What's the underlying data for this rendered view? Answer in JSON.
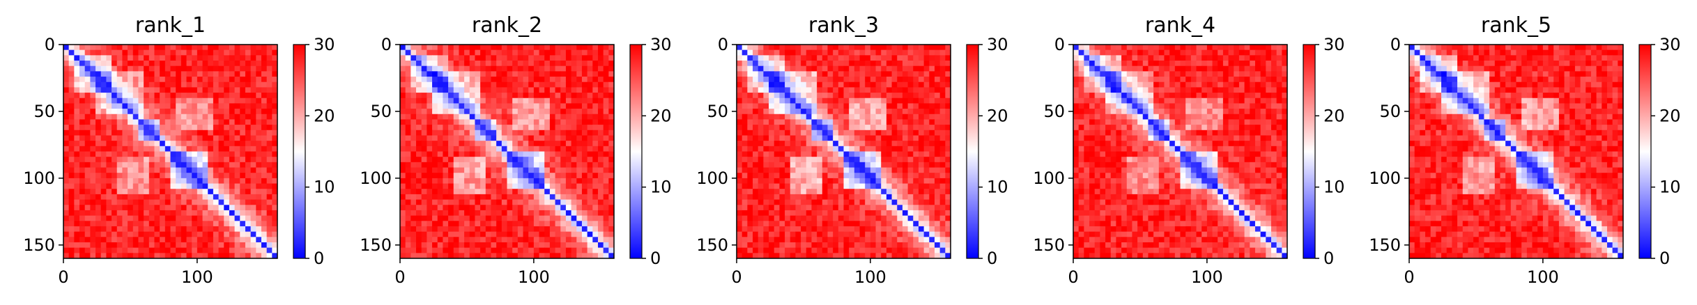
{
  "chart_data": [
    {
      "type": "heatmap",
      "title": "rank_1",
      "x_ticks": [
        "0",
        "100"
      ],
      "y_ticks": [
        "0",
        "50",
        "100",
        "150"
      ],
      "x_tick_values": [
        0,
        100
      ],
      "y_tick_values": [
        0,
        50,
        100,
        150
      ],
      "extent": [
        0,
        160
      ],
      "colorbar": {
        "ticks": [
          "0",
          "10",
          "20",
          "30"
        ],
        "tick_values": [
          0,
          10,
          20,
          30
        ],
        "vmin": 0,
        "vmax": 30,
        "colormap": "bwr"
      }
    },
    {
      "type": "heatmap",
      "title": "rank_2",
      "x_ticks": [
        "0",
        "100"
      ],
      "y_ticks": [
        "0",
        "50",
        "100",
        "150"
      ],
      "x_tick_values": [
        0,
        100
      ],
      "y_tick_values": [
        0,
        50,
        100,
        150
      ],
      "extent": [
        0,
        160
      ],
      "colorbar": {
        "ticks": [
          "0",
          "10",
          "20",
          "30"
        ],
        "tick_values": [
          0,
          10,
          20,
          30
        ],
        "vmin": 0,
        "vmax": 30,
        "colormap": "bwr"
      }
    },
    {
      "type": "heatmap",
      "title": "rank_3",
      "x_ticks": [
        "0",
        "100"
      ],
      "y_ticks": [
        "0",
        "50",
        "100",
        "150"
      ],
      "x_tick_values": [
        0,
        100
      ],
      "y_tick_values": [
        0,
        50,
        100,
        150
      ],
      "extent": [
        0,
        160
      ],
      "colorbar": {
        "ticks": [
          "0",
          "10",
          "20",
          "30"
        ],
        "tick_values": [
          0,
          10,
          20,
          30
        ],
        "vmin": 0,
        "vmax": 30,
        "colormap": "bwr"
      }
    },
    {
      "type": "heatmap",
      "title": "rank_4",
      "x_ticks": [
        "0",
        "100"
      ],
      "y_ticks": [
        "0",
        "50",
        "100",
        "150"
      ],
      "x_tick_values": [
        0,
        100
      ],
      "y_tick_values": [
        0,
        50,
        100,
        150
      ],
      "extent": [
        0,
        160
      ],
      "colorbar": {
        "ticks": [
          "0",
          "10",
          "20",
          "30"
        ],
        "tick_values": [
          0,
          10,
          20,
          30
        ],
        "vmin": 0,
        "vmax": 30,
        "colormap": "bwr"
      }
    },
    {
      "type": "heatmap",
      "title": "rank_5",
      "x_ticks": [
        "0",
        "100"
      ],
      "y_ticks": [
        "0",
        "50",
        "100",
        "150"
      ],
      "x_tick_values": [
        0,
        100
      ],
      "y_tick_values": [
        0,
        50,
        100,
        150
      ],
      "extent": [
        0,
        160
      ],
      "colorbar": {
        "ticks": [
          "0",
          "10",
          "20",
          "30"
        ],
        "tick_values": [
          0,
          10,
          20,
          30
        ],
        "vmin": 0,
        "vmax": 30,
        "colormap": "bwr"
      }
    }
  ],
  "colors": {
    "low": "#0000ff",
    "mid": "#ffffff",
    "high": "#ff0000",
    "axis": "#000000"
  }
}
